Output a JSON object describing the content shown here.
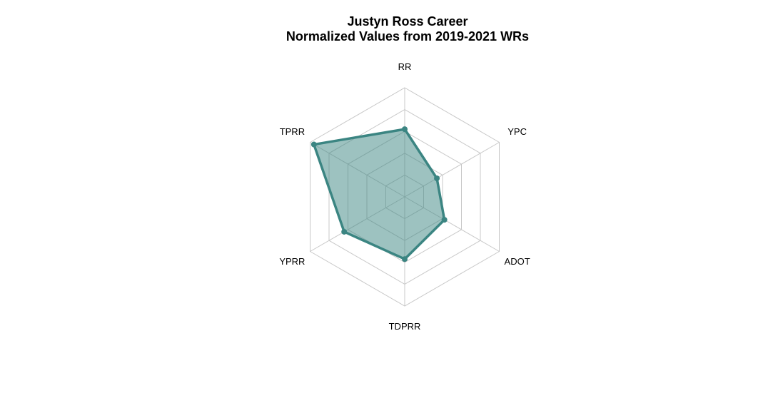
{
  "chart_data": {
    "type": "radar",
    "title": "Justyn Ross Career",
    "subtitle": "Normalized Values from 2019-2021 WRs",
    "axes": [
      "RR",
      "YPC",
      "ADOT",
      "TDPRR",
      "YPRR",
      "TPRR"
    ],
    "range": [
      0,
      1
    ],
    "grid_levels": 5,
    "series": [
      {
        "values": [
          0.62,
          0.34,
          0.42,
          0.57,
          0.64,
          0.96
        ]
      }
    ],
    "colors": {
      "line": "#3b8582",
      "fill": "#3b8582",
      "grid": "#c8c8c8"
    }
  }
}
